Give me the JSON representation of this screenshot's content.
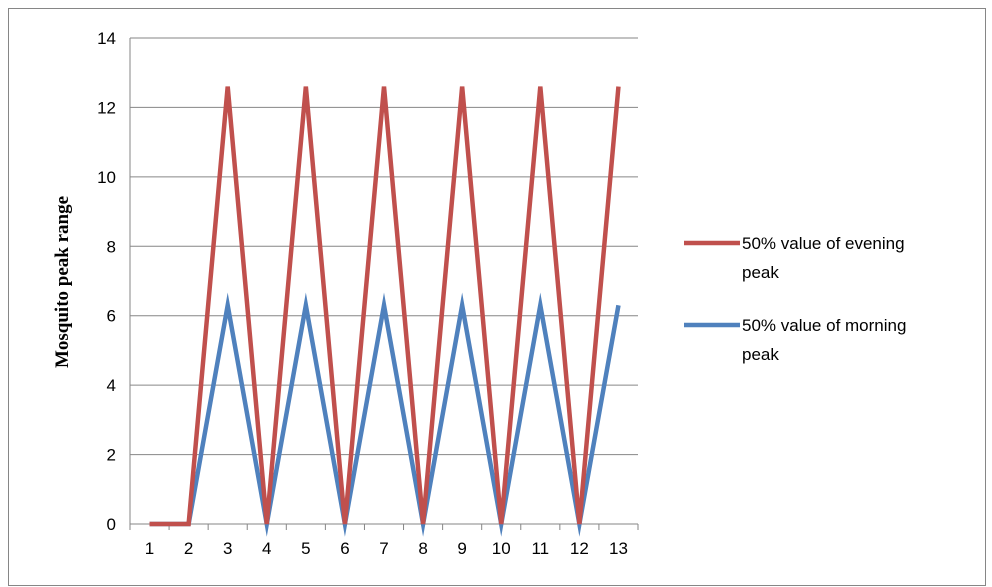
{
  "chart_data": {
    "type": "line",
    "title": "",
    "xlabel": "",
    "ylabel": "Mosquito peak range",
    "categories": [
      "1",
      "2",
      "3",
      "4",
      "5",
      "6",
      "7",
      "8",
      "9",
      "10",
      "11",
      "12",
      "13"
    ],
    "ylim": [
      0,
      14
    ],
    "yticks": [
      "0",
      "2",
      "4",
      "6",
      "8",
      "10",
      "12",
      "14"
    ],
    "grid": "horizontal",
    "legend_position": "right",
    "series": [
      {
        "name": "50% value of evening peak",
        "legend_lines": [
          "50% value of evening",
          "peak"
        ],
        "color": "#C0504D",
        "values": [
          0,
          0,
          12.6,
          0,
          12.6,
          0,
          12.6,
          0,
          12.6,
          0,
          12.6,
          0,
          12.6
        ]
      },
      {
        "name": "50% value of morning peak",
        "legend_lines": [
          "50% value of morning",
          "peak"
        ],
        "color": "#4F81BD",
        "values": [
          0,
          0,
          6.3,
          0,
          6.3,
          0,
          6.3,
          0,
          6.3,
          0,
          6.3,
          0,
          6.3
        ]
      }
    ]
  }
}
